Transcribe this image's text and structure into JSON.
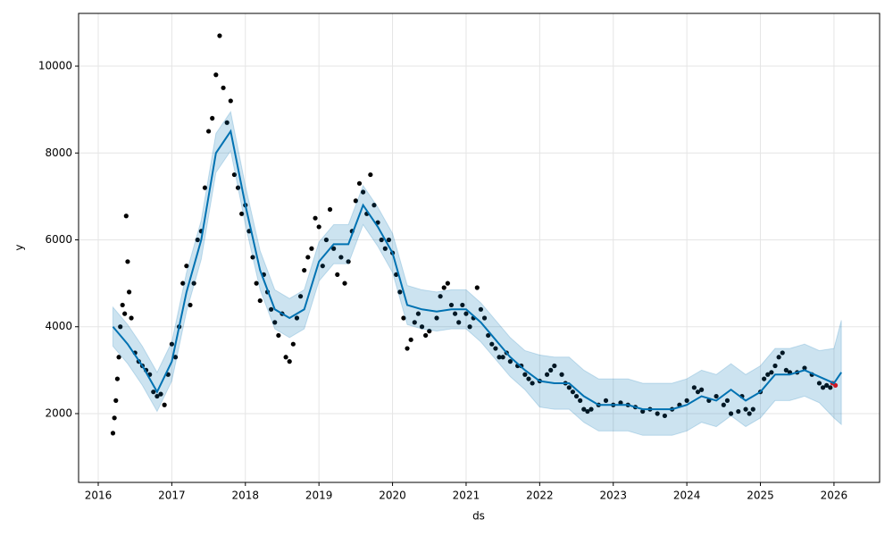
{
  "chart_data": {
    "type": "forecast",
    "xlabel": "ds",
    "ylabel": "y",
    "xlim": [
      2015.733,
      2026.62
    ],
    "ylim": [
      416,
      11214
    ],
    "xticks": [
      2016,
      2017,
      2018,
      2019,
      2020,
      2021,
      2022,
      2023,
      2024,
      2025,
      2026
    ],
    "yticks": [
      2000,
      4000,
      6000,
      8000,
      10000
    ],
    "grid": true,
    "series": [
      {
        "style": "points",
        "color": "#000000",
        "x": [
          2016.2,
          2016.22,
          2016.24,
          2016.26,
          2016.28,
          2016.3,
          2016.33,
          2016.36,
          2016.38,
          2016.4,
          2016.42,
          2016.45,
          2016.5,
          2016.55,
          2016.6,
          2016.65,
          2016.7,
          2016.75,
          2016.8,
          2016.85,
          2016.9,
          2016.95,
          2017.0,
          2017.05,
          2017.1,
          2017.15,
          2017.2,
          2017.25,
          2017.3,
          2017.35,
          2017.4,
          2017.45,
          2017.5,
          2017.55,
          2017.6,
          2017.65,
          2017.7,
          2017.75,
          2017.8,
          2017.85,
          2017.9,
          2017.95,
          2018.0,
          2018.05,
          2018.1,
          2018.15,
          2018.2,
          2018.25,
          2018.3,
          2018.35,
          2018.4,
          2018.45,
          2018.5,
          2018.55,
          2018.6,
          2018.65,
          2018.7,
          2018.75,
          2018.8,
          2018.85,
          2018.9,
          2018.95,
          2019.0,
          2019.05,
          2019.1,
          2019.15,
          2019.2,
          2019.25,
          2019.3,
          2019.35,
          2019.4,
          2019.45,
          2019.5,
          2019.55,
          2019.6,
          2019.65,
          2019.7,
          2019.75,
          2019.8,
          2019.85,
          2019.9,
          2019.95,
          2020.0,
          2020.05,
          2020.1,
          2020.15,
          2020.2,
          2020.25,
          2020.3,
          2020.35,
          2020.4,
          2020.45,
          2020.5,
          2020.6,
          2020.65,
          2020.7,
          2020.75,
          2020.8,
          2020.85,
          2020.9,
          2020.95,
          2021.0,
          2021.05,
          2021.1,
          2021.15,
          2021.2,
          2021.25,
          2021.3,
          2021.35,
          2021.4,
          2021.45,
          2021.5,
          2021.55,
          2021.6,
          2021.7,
          2021.75,
          2021.8,
          2021.85,
          2021.9,
          2022.0,
          2022.1,
          2022.15,
          2022.2,
          2022.3,
          2022.35,
          2022.4,
          2022.45,
          2022.5,
          2022.55,
          2022.6,
          2022.65,
          2022.7,
          2022.8,
          2022.9,
          2023.0,
          2023.1,
          2023.2,
          2023.3,
          2023.4,
          2023.5,
          2023.6,
          2023.7,
          2023.8,
          2023.9,
          2024.0,
          2024.1,
          2024.15,
          2024.2,
          2024.3,
          2024.4,
          2024.5,
          2024.55,
          2024.6,
          2024.7,
          2024.75,
          2024.8,
          2024.85,
          2024.9,
          2025.0,
          2025.05,
          2025.1,
          2025.15,
          2025.2,
          2025.25,
          2025.3,
          2025.35,
          2025.4,
          2025.5,
          2025.6,
          2025.7,
          2025.8,
          2025.85,
          2025.9,
          2025.95
        ],
        "values": [
          1550,
          1900,
          2300,
          2800,
          3300,
          4000,
          4500,
          4300,
          6550,
          5500,
          4800,
          4200,
          3400,
          3200,
          3100,
          3000,
          2900,
          2500,
          2400,
          2450,
          2200,
          2900,
          3600,
          3300,
          4000,
          5000,
          5400,
          4500,
          5000,
          6000,
          6200,
          7200,
          8500,
          8800,
          9800,
          10700,
          9500,
          8700,
          9200,
          7500,
          7200,
          6600,
          6800,
          6200,
          5600,
          5000,
          4600,
          5200,
          4800,
          4400,
          4100,
          3800,
          4300,
          3300,
          3200,
          3600,
          4200,
          4700,
          5300,
          5600,
          5800,
          6500,
          6300,
          5400,
          6000,
          6700,
          5800,
          5200,
          5600,
          5000,
          5500,
          6200,
          6900,
          7300,
          7100,
          6600,
          7500,
          6800,
          6400,
          6000,
          5800,
          6000,
          5700,
          5200,
          4800,
          4200,
          3500,
          3700,
          4100,
          4300,
          4000,
          3800,
          3900,
          4200,
          4700,
          4900,
          5000,
          4500,
          4300,
          4100,
          4500,
          4300,
          4000,
          4200,
          4900,
          4400,
          4200,
          3800,
          3600,
          3500,
          3300,
          3300,
          3400,
          3200,
          3100,
          3100,
          2900,
          2800,
          2700,
          2750,
          2900,
          3000,
          3100,
          2900,
          2700,
          2600,
          2500,
          2400,
          2300,
          2100,
          2050,
          2100,
          2200,
          2300,
          2200,
          2250,
          2200,
          2150,
          2050,
          2100,
          2000,
          1950,
          2100,
          2200,
          2300,
          2600,
          2500,
          2550,
          2300,
          2400,
          2200,
          2300,
          2000,
          2050,
          2400,
          2100,
          2000,
          2100,
          2500,
          2800,
          2900,
          2950,
          3100,
          3300,
          3400,
          3000,
          2950,
          2950,
          3050,
          2900,
          2700,
          2600,
          2650,
          2600
        ]
      },
      {
        "style": "points",
        "color": "#ff0000",
        "x": [
          2025.98,
          2026.02
        ],
        "values": [
          2700,
          2650
        ]
      },
      {
        "style": "line",
        "color": "#0072B2",
        "x": [
          2016.2,
          2016.4,
          2016.6,
          2016.8,
          2017.0,
          2017.2,
          2017.4,
          2017.6,
          2017.8,
          2018.0,
          2018.2,
          2018.4,
          2018.6,
          2018.8,
          2019.0,
          2019.2,
          2019.4,
          2019.6,
          2019.8,
          2020.0,
          2020.2,
          2020.4,
          2020.6,
          2020.8,
          2021.0,
          2021.2,
          2021.4,
          2021.6,
          2021.8,
          2022.0,
          2022.2,
          2022.4,
          2022.6,
          2022.8,
          2023.0,
          2023.2,
          2023.4,
          2023.6,
          2023.8,
          2024.0,
          2024.2,
          2024.4,
          2024.6,
          2024.8,
          2025.0,
          2025.2,
          2025.4,
          2025.6,
          2025.8,
          2026.0,
          2026.1
        ],
        "values": [
          4000,
          3600,
          3100,
          2500,
          3200,
          4800,
          6000,
          8000,
          8500,
          6800,
          5300,
          4400,
          4200,
          4400,
          5500,
          5900,
          5900,
          6800,
          6300,
          5700,
          4500,
          4400,
          4350,
          4400,
          4400,
          4100,
          3700,
          3300,
          3000,
          2750,
          2700,
          2700,
          2400,
          2200,
          2200,
          2200,
          2100,
          2100,
          2100,
          2200,
          2400,
          2300,
          2550,
          2300,
          2500,
          2900,
          2900,
          3000,
          2850,
          2700,
          2950
        ]
      },
      {
        "style": "band",
        "color": "#0072B2",
        "x": [
          2016.2,
          2016.4,
          2016.6,
          2016.8,
          2017.0,
          2017.2,
          2017.4,
          2017.6,
          2017.8,
          2018.0,
          2018.2,
          2018.4,
          2018.6,
          2018.8,
          2019.0,
          2019.2,
          2019.4,
          2019.6,
          2019.8,
          2020.0,
          2020.2,
          2020.4,
          2020.6,
          2020.8,
          2021.0,
          2021.2,
          2021.4,
          2021.6,
          2021.8,
          2022.0,
          2022.2,
          2022.4,
          2022.6,
          2022.8,
          2023.0,
          2023.2,
          2023.4,
          2023.6,
          2023.8,
          2024.0,
          2024.2,
          2024.4,
          2024.6,
          2024.8,
          2025.0,
          2025.2,
          2025.4,
          2025.6,
          2025.8,
          2026.0,
          2026.1
        ],
        "lower": [
          3550,
          3150,
          2650,
          2050,
          2750,
          4350,
          5550,
          7550,
          8050,
          6350,
          4850,
          3950,
          3750,
          3950,
          5050,
          5450,
          5450,
          6350,
          5850,
          5250,
          4050,
          3950,
          3900,
          3950,
          3950,
          3650,
          3250,
          2850,
          2550,
          2150,
          2100,
          2100,
          1800,
          1600,
          1600,
          1600,
          1500,
          1500,
          1500,
          1600,
          1800,
          1700,
          1950,
          1700,
          1900,
          2300,
          2300,
          2400,
          2250,
          1900,
          1750
        ],
        "upper": [
          4450,
          4050,
          3550,
          2950,
          3650,
          5250,
          6450,
          8450,
          8950,
          7250,
          5750,
          4850,
          4650,
          4850,
          5950,
          6350,
          6350,
          7250,
          6750,
          6150,
          4950,
          4850,
          4800,
          4850,
          4850,
          4550,
          4150,
          3750,
          3450,
          3350,
          3300,
          3300,
          3000,
          2800,
          2800,
          2800,
          2700,
          2700,
          2700,
          2800,
          3000,
          2900,
          3150,
          2900,
          3100,
          3500,
          3500,
          3600,
          3450,
          3500,
          4150
        ]
      }
    ]
  }
}
